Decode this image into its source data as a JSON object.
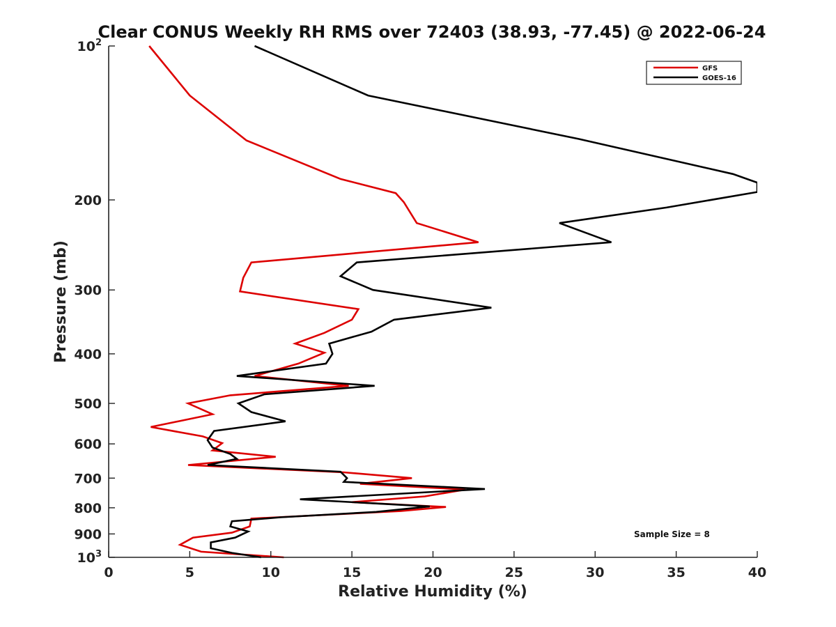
{
  "chart_data": {
    "type": "line",
    "title": "Clear CONUS Weekly RH RMS over 72403 (38.93, -77.45) @ 2022-06-24",
    "xlabel": "Relative Humidity (%)",
    "ylabel": "Pressure (mb)",
    "xlim": [
      0,
      40
    ],
    "ylim": [
      100,
      1000
    ],
    "y_scale": "log",
    "y_reversed": true,
    "x_ticks": [
      "0",
      "5",
      "10",
      "15",
      "20",
      "25",
      "30",
      "35",
      "40"
    ],
    "y_ticks": [
      {
        "value": 100,
        "base": "10",
        "exp": "2"
      },
      {
        "value": 200,
        "label": "200"
      },
      {
        "value": 300,
        "label": "300"
      },
      {
        "value": 400,
        "label": "400"
      },
      {
        "value": 500,
        "label": "500"
      },
      {
        "value": 600,
        "label": "600"
      },
      {
        "value": 700,
        "label": "700"
      },
      {
        "value": 800,
        "label": "800"
      },
      {
        "value": 900,
        "label": "900"
      },
      {
        "value": 1000,
        "base": "10",
        "exp": "3"
      }
    ],
    "legend_position": "top-right",
    "grid": false,
    "annotation": "Sample Size = 8",
    "series": [
      {
        "name": "GFS",
        "color": "#dd0000",
        "points": [
          [
            2.5,
            100
          ],
          [
            5.0,
            125
          ],
          [
            8.5,
            153
          ],
          [
            14.3,
            182
          ],
          [
            17.7,
            194
          ],
          [
            18.2,
            202
          ],
          [
            19.0,
            222
          ],
          [
            22.8,
            242
          ],
          [
            8.8,
            265
          ],
          [
            8.3,
            284
          ],
          [
            8.1,
            302
          ],
          [
            15.4,
            327
          ],
          [
            15.0,
            343
          ],
          [
            13.3,
            364
          ],
          [
            11.5,
            382
          ],
          [
            13.3,
            398
          ],
          [
            11.7,
            418
          ],
          [
            9.0,
            442
          ],
          [
            14.8,
            462
          ],
          [
            7.5,
            482
          ],
          [
            4.9,
            500
          ],
          [
            6.4,
            525
          ],
          [
            2.6,
            556
          ],
          [
            5.8,
            580
          ],
          [
            7.0,
            598
          ],
          [
            6.4,
            618
          ],
          [
            10.3,
            636
          ],
          [
            4.9,
            660
          ],
          [
            14.5,
            682
          ],
          [
            18.7,
            700
          ],
          [
            15.5,
            718
          ],
          [
            22.0,
            737
          ],
          [
            19.5,
            760
          ],
          [
            15.0,
            780
          ],
          [
            20.8,
            797
          ],
          [
            18.0,
            812
          ],
          [
            8.8,
            840
          ],
          [
            8.7,
            870
          ],
          [
            7.6,
            895
          ],
          [
            5.2,
            915
          ],
          [
            4.4,
            945
          ],
          [
            5.7,
            975
          ],
          [
            10.8,
            1000
          ]
        ]
      },
      {
        "name": "GOES-16",
        "color": "#000000",
        "points": [
          [
            9.0,
            100
          ],
          [
            16.0,
            125
          ],
          [
            29.0,
            152
          ],
          [
            38.5,
            178
          ],
          [
            40.0,
            185
          ],
          [
            40.0,
            193
          ],
          [
            34.4,
            207
          ],
          [
            27.8,
            222
          ],
          [
            31.0,
            242
          ],
          [
            15.3,
            265
          ],
          [
            14.3,
            282
          ],
          [
            16.3,
            300
          ],
          [
            23.6,
            325
          ],
          [
            17.6,
            343
          ],
          [
            16.2,
            362
          ],
          [
            13.6,
            382
          ],
          [
            13.8,
            400
          ],
          [
            13.4,
            418
          ],
          [
            7.9,
            442
          ],
          [
            16.4,
            462
          ],
          [
            9.6,
            480
          ],
          [
            8.0,
            500
          ],
          [
            8.8,
            520
          ],
          [
            10.9,
            542
          ],
          [
            6.5,
            566
          ],
          [
            6.1,
            590
          ],
          [
            6.4,
            610
          ],
          [
            7.5,
            628
          ],
          [
            7.9,
            642
          ],
          [
            6.1,
            660
          ],
          [
            14.3,
            680
          ],
          [
            14.7,
            700
          ],
          [
            14.5,
            712
          ],
          [
            23.2,
            735
          ],
          [
            11.8,
            770
          ],
          [
            19.8,
            795
          ],
          [
            16.5,
            815
          ],
          [
            10.6,
            835
          ],
          [
            7.6,
            850
          ],
          [
            7.5,
            870
          ],
          [
            8.6,
            890
          ],
          [
            7.8,
            915
          ],
          [
            6.3,
            935
          ],
          [
            6.3,
            960
          ],
          [
            7.6,
            980
          ],
          [
            9.4,
            1000
          ]
        ]
      }
    ]
  }
}
